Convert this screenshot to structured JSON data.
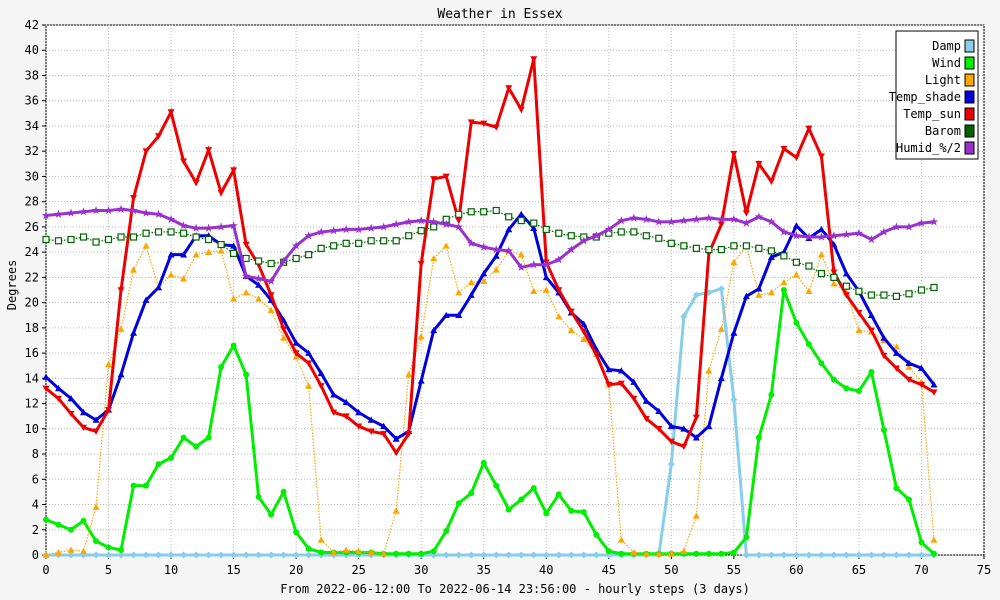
{
  "chart_data": {
    "type": "line",
    "title": "Weather in Essex",
    "xlabel": "From 2022-06-12:00 To 2022-06-14 23:56:00 - hourly steps (3 days)",
    "ylabel": "Degrees",
    "xlim": [
      0,
      75
    ],
    "ylim": [
      0,
      42
    ],
    "xticks": [
      0,
      5,
      10,
      15,
      20,
      25,
      30,
      35,
      40,
      45,
      50,
      55,
      60,
      65,
      70,
      75
    ],
    "yticks": [
      0,
      2,
      4,
      6,
      8,
      10,
      12,
      14,
      16,
      18,
      20,
      22,
      24,
      26,
      28,
      30,
      32,
      34,
      36,
      38,
      40,
      42
    ],
    "grid": true,
    "legend_position": "top-right",
    "x": [
      0,
      1,
      2,
      3,
      4,
      5,
      6,
      7,
      8,
      9,
      10,
      11,
      12,
      13,
      14,
      15,
      16,
      17,
      18,
      19,
      20,
      21,
      22,
      23,
      24,
      25,
      26,
      27,
      28,
      29,
      30,
      31,
      32,
      33,
      34,
      35,
      36,
      37,
      38,
      39,
      40,
      41,
      42,
      43,
      44,
      45,
      46,
      47,
      48,
      49,
      50,
      51,
      52,
      53,
      54,
      55,
      56,
      57,
      58,
      59,
      60,
      61,
      62,
      63,
      64,
      65,
      66,
      67,
      68,
      69,
      70,
      71
    ],
    "series": [
      {
        "name": "Damp",
        "color": "#87ceeb",
        "marker": "diamond",
        "style": "solid",
        "values": [
          0,
          0,
          0,
          0,
          0,
          0,
          0,
          0,
          0,
          0,
          0,
          0,
          0,
          0,
          0,
          0,
          0,
          0,
          0,
          0,
          0,
          0,
          0,
          0,
          0,
          0,
          0,
          0,
          0,
          0,
          0,
          0,
          0,
          0,
          0,
          0,
          0,
          0,
          0,
          0,
          0,
          0,
          0,
          0,
          0,
          0,
          0,
          0,
          0,
          0,
          7.2,
          18.9,
          20.6,
          20.8,
          21.1,
          12.3,
          0,
          0,
          0,
          0,
          0,
          0,
          0,
          0,
          0,
          0,
          0,
          0,
          0,
          0,
          0,
          0
        ]
      },
      {
        "name": "Wind",
        "color": "#00ee00",
        "marker": "circle",
        "style": "solid",
        "values": [
          2.8,
          2.4,
          2.0,
          2.7,
          1.1,
          0.6,
          0.4,
          5.5,
          5.5,
          7.2,
          7.7,
          9.3,
          8.6,
          9.3,
          14.9,
          16.6,
          14.3,
          4.6,
          3.2,
          5.0,
          1.8,
          0.5,
          0.2,
          0.2,
          0.2,
          0.2,
          0.2,
          0.1,
          0.1,
          0.1,
          0.1,
          0.3,
          1.9,
          4.1,
          4.9,
          7.3,
          5.5,
          3.6,
          4.4,
          5.3,
          3.3,
          4.8,
          3.5,
          3.4,
          1.6,
          0.3,
          0.1,
          0.1,
          0.1,
          0.1,
          0.1,
          0.1,
          0.1,
          0.1,
          0.1,
          0.2,
          1.4,
          9.3,
          12.7,
          21.0,
          18.4,
          16.7,
          15.2,
          13.9,
          13.2,
          13.0,
          14.5,
          9.9,
          5.3,
          4.4,
          1.0,
          0.1
        ]
      },
      {
        "name": "Light",
        "color": "#ffa500",
        "marker": "triangle",
        "style": "dotted",
        "values": [
          0,
          0.2,
          0.4,
          0.3,
          3.8,
          15.1,
          17.9,
          22.6,
          24.5,
          21.2,
          22.2,
          21.9,
          23.8,
          24.0,
          24.1,
          20.3,
          20.8,
          20.3,
          19.4,
          17.2,
          15.7,
          13.4,
          1.2,
          0.2,
          0.4,
          0.3,
          0.2,
          0.1,
          3.5,
          14.3,
          17.3,
          23.5,
          24.5,
          20.8,
          21.6,
          21.7,
          22.6,
          24.1,
          23.8,
          20.9,
          21.0,
          18.9,
          17.8,
          17.1,
          15.9,
          13.5,
          1.2,
          0.2,
          0.1,
          0.1,
          0.1,
          0.3,
          3.1,
          14.6,
          17.9,
          23.2,
          24.5,
          20.6,
          20.8,
          21.6,
          22.2,
          20.9,
          23.8,
          21.5,
          20.8,
          17.8,
          17.7,
          17.0,
          16.5,
          14.9,
          13.7,
          1.2
        ]
      },
      {
        "name": "Temp_shade",
        "color": "#0000dd",
        "marker": "triangle",
        "style": "solid",
        "values": [
          14.1,
          13.2,
          12.4,
          11.3,
          10.7,
          11.5,
          14.3,
          17.6,
          20.2,
          21.2,
          23.8,
          23.8,
          25.3,
          25.3,
          24.6,
          24.5,
          22.1,
          21.4,
          20.2,
          18.6,
          16.8,
          16.0,
          14.4,
          12.7,
          12.1,
          11.3,
          10.7,
          10.2,
          9.2,
          9.8,
          13.8,
          17.8,
          19.0,
          19.0,
          20.6,
          22.3,
          23.7,
          25.8,
          27.0,
          25.9,
          22.0,
          20.8,
          19.2,
          18.3,
          16.3,
          14.7,
          14.6,
          13.7,
          12.2,
          11.4,
          10.2,
          10.0,
          9.3,
          10.2,
          14.0,
          17.6,
          20.5,
          21.1,
          23.6,
          24.0,
          26.1,
          25.1,
          25.8,
          24.6,
          22.3,
          20.9,
          19.0,
          17.2,
          16.0,
          15.2,
          14.8,
          13.5
        ]
      },
      {
        "name": "Temp_sun",
        "color": "#ee0000",
        "marker": "triangle-down",
        "style": "solid",
        "values": [
          13.2,
          12.4,
          11.2,
          10.1,
          9.8,
          11.5,
          21.0,
          28.3,
          32.0,
          33.2,
          35.1,
          31.2,
          29.5,
          32.1,
          28.7,
          30.5,
          24.6,
          23.0,
          20.6,
          17.9,
          16.0,
          15.2,
          13.4,
          11.3,
          11.0,
          10.2,
          9.8,
          9.6,
          8.1,
          9.6,
          23.1,
          29.8,
          30.0,
          26.5,
          34.3,
          34.2,
          33.9,
          37.0,
          35.3,
          39.3,
          23.2,
          21.0,
          19.3,
          17.7,
          15.9,
          13.5,
          13.6,
          12.4,
          10.8,
          10.0,
          9.0,
          8.6,
          10.9,
          23.9,
          26.2,
          31.8,
          27.1,
          31.0,
          29.6,
          32.2,
          31.5,
          33.8,
          31.6,
          22.4,
          20.6,
          19.2,
          17.8,
          15.8,
          14.8,
          13.9,
          13.5,
          12.9
        ]
      },
      {
        "name": "Barom",
        "color": "#006400",
        "marker": "square",
        "style": "dotted",
        "values": [
          25.0,
          24.9,
          25.0,
          25.2,
          24.8,
          25.0,
          25.2,
          25.2,
          25.5,
          25.6,
          25.6,
          25.5,
          25.2,
          25.0,
          24.6,
          23.9,
          23.5,
          23.3,
          23.1,
          23.2,
          23.5,
          23.8,
          24.3,
          24.5,
          24.7,
          24.7,
          24.9,
          24.9,
          24.9,
          25.3,
          25.7,
          26.0,
          26.6,
          27.0,
          27.2,
          27.2,
          27.3,
          26.8,
          26.5,
          26.3,
          25.8,
          25.5,
          25.3,
          25.2,
          25.2,
          25.5,
          25.6,
          25.6,
          25.3,
          25.1,
          24.7,
          24.5,
          24.3,
          24.2,
          24.2,
          24.5,
          24.5,
          24.3,
          24.1,
          23.7,
          23.2,
          22.9,
          22.3,
          22.0,
          21.3,
          20.9,
          20.6,
          20.6,
          20.5,
          20.7,
          21.0,
          21.2
        ]
      },
      {
        "name": "Humid_%/2",
        "color": "#9932cc",
        "marker": "star",
        "style": "solid",
        "values": [
          26.9,
          27.0,
          27.1,
          27.2,
          27.3,
          27.3,
          27.4,
          27.3,
          27.1,
          27.0,
          26.6,
          26.1,
          25.9,
          25.9,
          26.0,
          26.1,
          22.1,
          21.9,
          21.7,
          23.3,
          24.5,
          25.3,
          25.6,
          25.7,
          25.8,
          25.8,
          25.9,
          26.0,
          26.2,
          26.4,
          26.5,
          26.4,
          26.2,
          26.0,
          24.7,
          24.4,
          24.2,
          24.1,
          22.8,
          23.0,
          23.0,
          23.4,
          24.2,
          24.9,
          25.3,
          25.8,
          26.5,
          26.7,
          26.6,
          26.4,
          26.4,
          26.5,
          26.6,
          26.7,
          26.6,
          26.6,
          26.3,
          26.8,
          26.4,
          25.6,
          25.3,
          25.2,
          25.2,
          25.3,
          25.4,
          25.5,
          25.0,
          25.6,
          26.0,
          26.0,
          26.3,
          26.4
        ]
      }
    ]
  }
}
